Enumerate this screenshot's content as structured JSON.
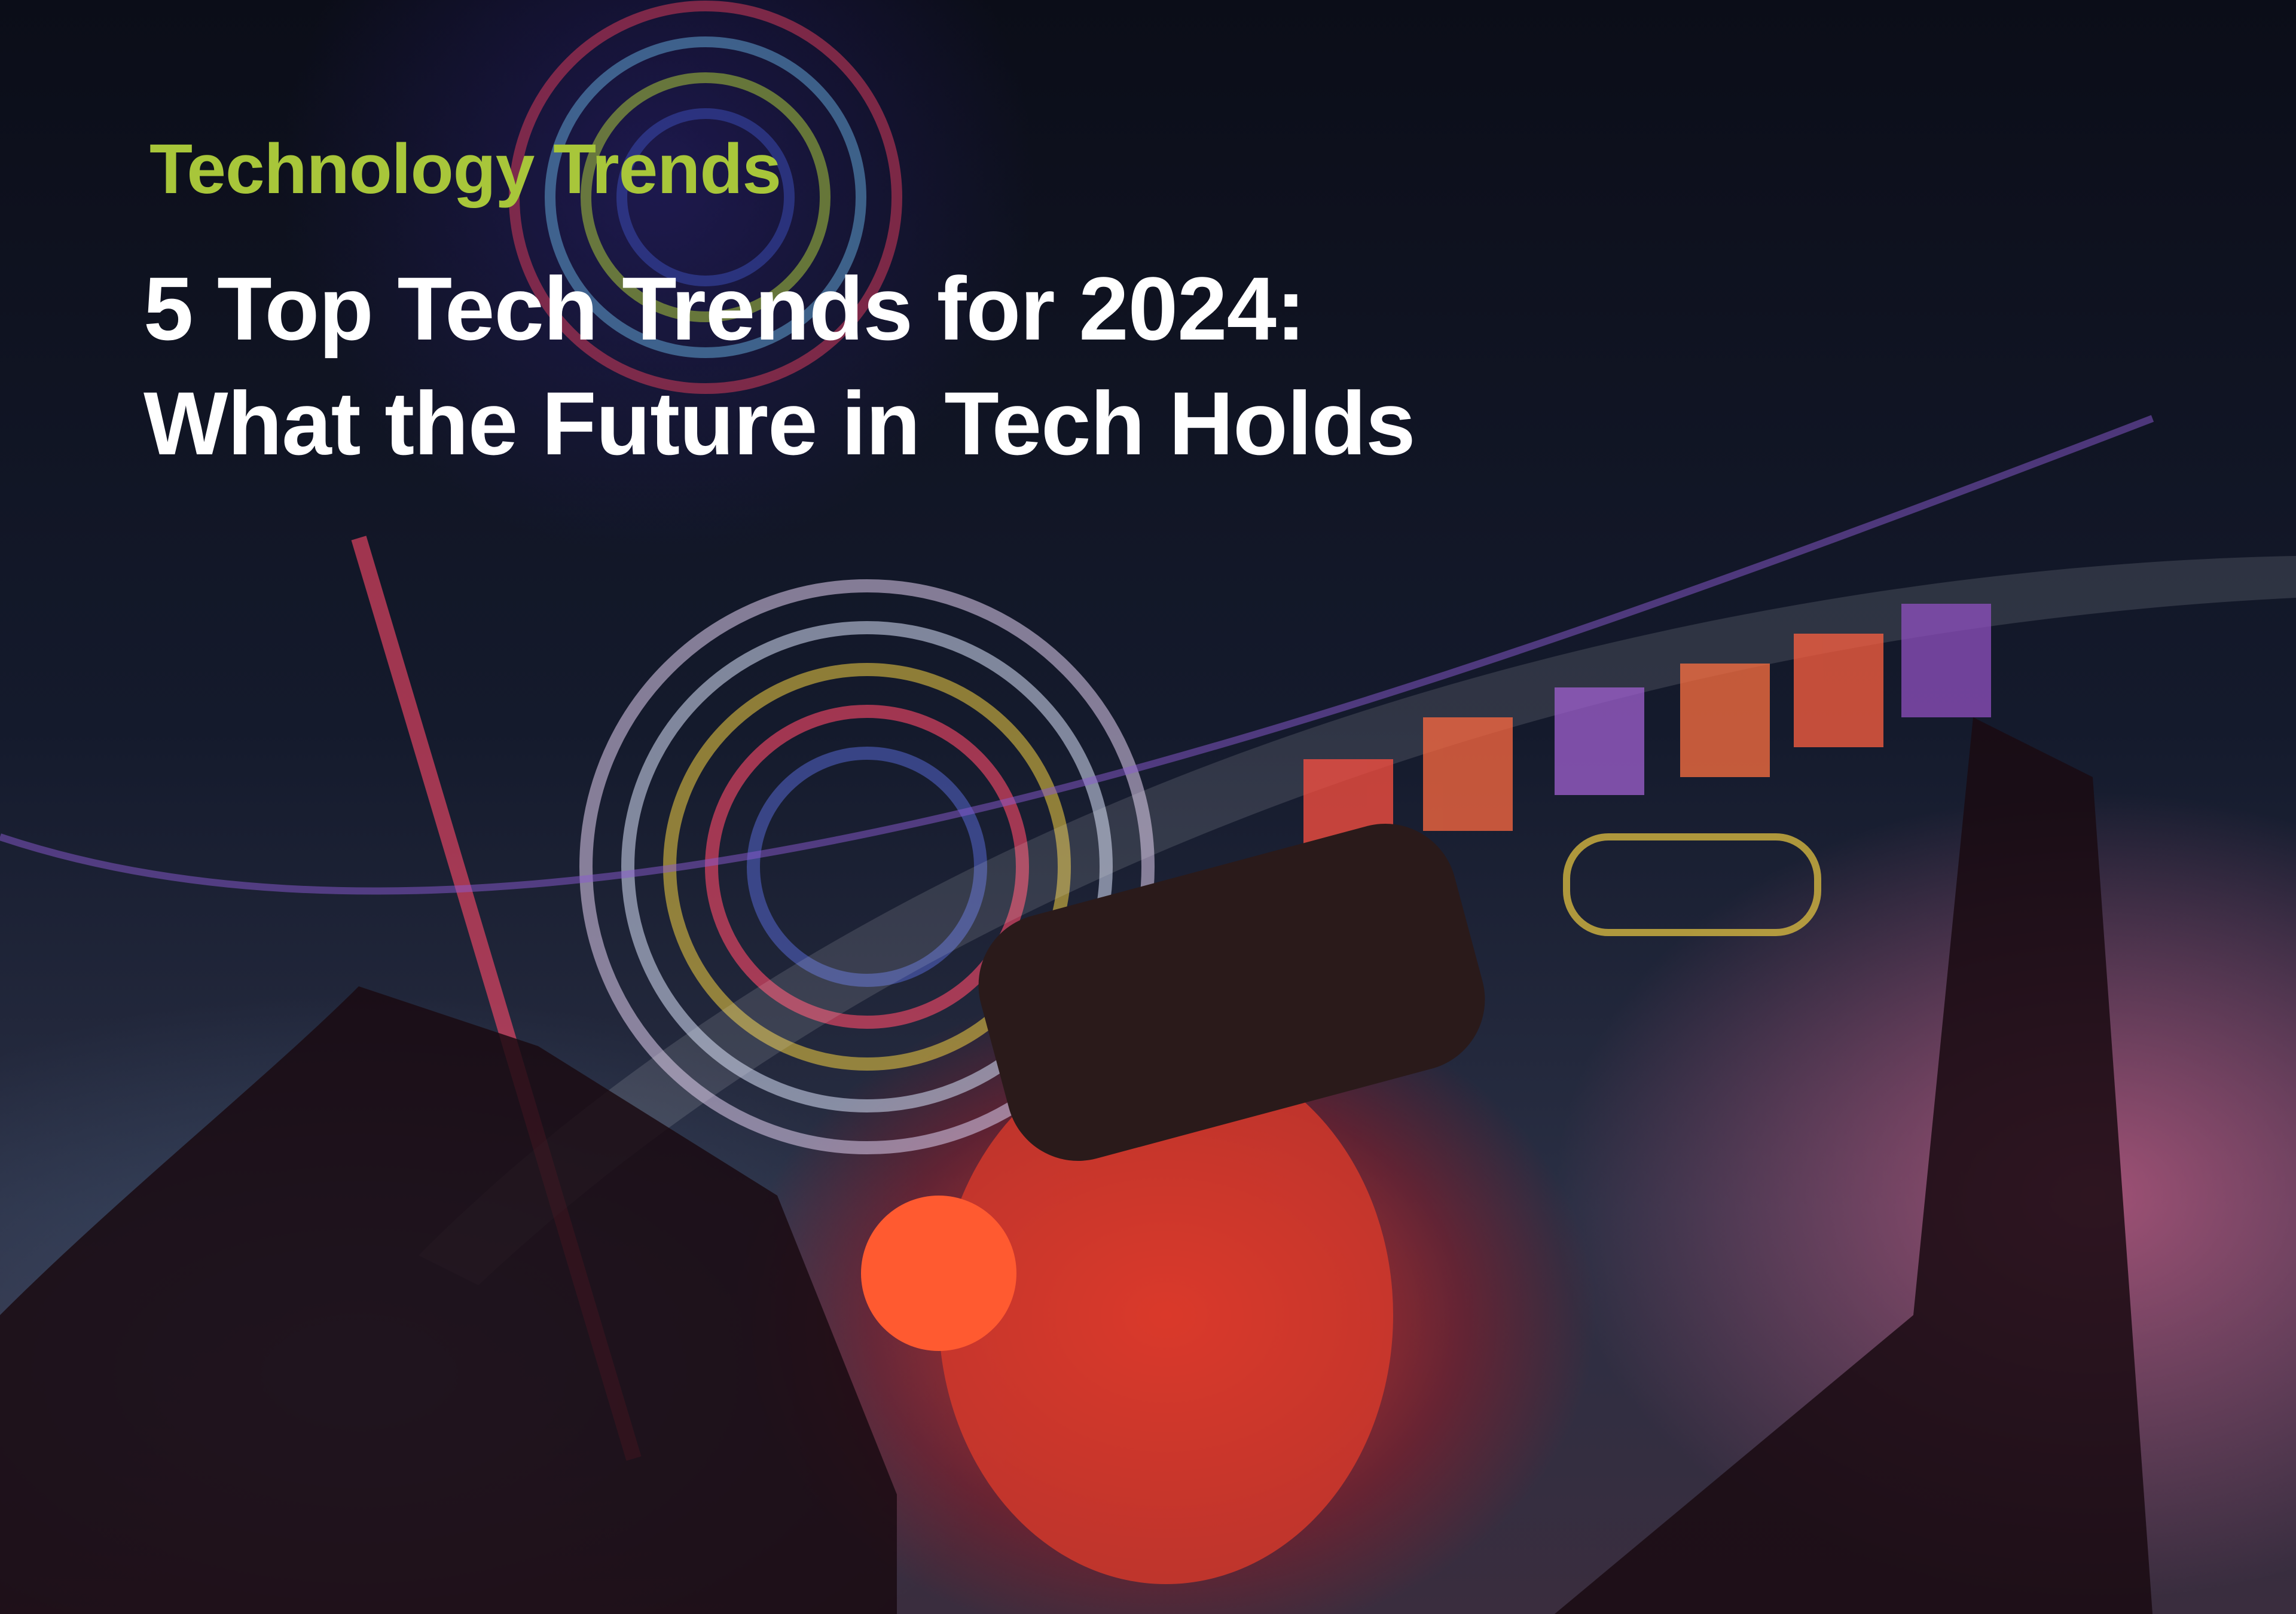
{
  "hero": {
    "kicker": "Technology Trends",
    "title_line1": "5 Top Tech Trends for 2024:",
    "title_line2": "What the Future in Tech Holds"
  },
  "colors": {
    "kicker": "#a8c63a",
    "title": "#ffffff",
    "background": "#0c0f1c"
  }
}
